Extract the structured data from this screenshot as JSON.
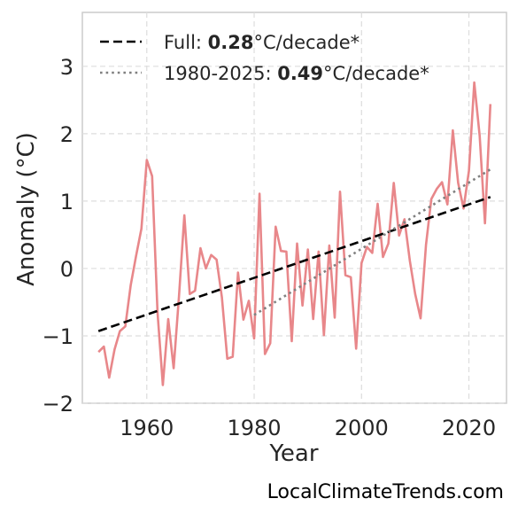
{
  "chart_data": {
    "type": "line",
    "xlabel": "Year",
    "ylabel": "Anomaly (°C)",
    "xlim": [
      1948,
      2027
    ],
    "ylim": [
      -2,
      3.8
    ],
    "xticks": [
      1960,
      1980,
      2000,
      2020
    ],
    "yticks": [
      -2,
      -1,
      0,
      1,
      2,
      3
    ],
    "grid": true,
    "legend_position": "top-left",
    "credit": "LocalClimateTrends.com",
    "colors": {
      "series": "#e8878a",
      "full_trend": "#000000",
      "recent_trend": "#808080"
    },
    "series": [
      {
        "x": [
          1951,
          1952,
          1953,
          1954,
          1955,
          1956,
          1957,
          1958,
          1959,
          1960,
          1961,
          1962,
          1963,
          1964,
          1965,
          1966,
          1967,
          1968,
          1969,
          1970,
          1971,
          1972,
          1973,
          1974,
          1975,
          1976,
          1977,
          1978,
          1979,
          1980,
          1981,
          1982,
          1983,
          1984,
          1985,
          1986,
          1987,
          1988,
          1989,
          1990,
          1991,
          1992,
          1993,
          1994,
          1995,
          1996,
          1997,
          1998,
          1999,
          2000,
          2001,
          2002,
          2003,
          2004,
          2005,
          2006,
          2007,
          2008,
          2009,
          2010,
          2011,
          2012,
          2013,
          2014,
          2015,
          2016,
          2017,
          2018,
          2019,
          2020,
          2021,
          2022,
          2023,
          2024
        ],
        "values": [
          -1.24,
          -1.16,
          -1.62,
          -1.2,
          -0.93,
          -0.86,
          -0.25,
          0.18,
          0.59,
          1.61,
          1.37,
          -0.65,
          -1.73,
          -0.75,
          -1.48,
          -0.42,
          0.79,
          -0.38,
          -0.33,
          0.3,
          0.0,
          0.2,
          0.13,
          -0.43,
          -1.34,
          -1.31,
          -0.06,
          -0.76,
          -0.48,
          -1.04,
          1.11,
          -1.27,
          -1.11,
          0.62,
          0.26,
          0.25,
          -1.08,
          0.37,
          -0.55,
          0.28,
          -0.75,
          0.25,
          -0.99,
          0.34,
          -0.73,
          1.14,
          -0.1,
          -0.13,
          -1.19,
          0.08,
          0.32,
          0.23,
          0.96,
          0.17,
          0.37,
          1.27,
          0.49,
          0.73,
          0.11,
          -0.38,
          -0.74,
          0.35,
          1.03,
          1.18,
          1.28,
          0.95,
          2.05,
          1.27,
          0.89,
          1.45,
          2.76,
          1.97,
          0.67,
          2.44
        ]
      }
    ],
    "trends": [
      {
        "label_prefix": "Full: ",
        "rate": "0.28",
        "label_suffix": "°C/decade*",
        "style": "dashed",
        "x": [
          1951,
          2024
        ],
        "y": [
          -0.93,
          1.06
        ]
      },
      {
        "label_prefix": "1980-2025: ",
        "rate": "0.49",
        "label_suffix": "°C/decade*",
        "style": "dotted",
        "x": [
          1980,
          2024
        ],
        "y": [
          -0.69,
          1.47
        ]
      }
    ]
  }
}
